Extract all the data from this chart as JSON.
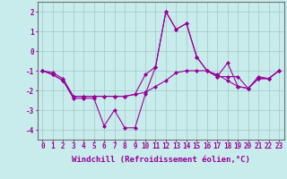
{
  "title": "",
  "xlabel": "Windchill (Refroidissement éolien,°C)",
  "ylabel": "",
  "background_color": "#c8ecec",
  "grid_color": "#a0c8c8",
  "line_color": "#990099",
  "x": [
    0,
    1,
    2,
    3,
    4,
    5,
    6,
    7,
    8,
    9,
    10,
    11,
    12,
    13,
    14,
    15,
    16,
    17,
    18,
    19,
    20,
    21,
    22,
    23
  ],
  "series1": [
    -1.0,
    -1.2,
    -1.5,
    -2.4,
    -2.4,
    -2.4,
    -3.8,
    -3.0,
    -3.9,
    -3.9,
    -2.2,
    -0.8,
    2.0,
    1.1,
    1.4,
    -0.3,
    -1.0,
    -1.3,
    -1.3,
    -1.3,
    -1.9,
    -1.3,
    -1.4,
    -1.0
  ],
  "series2": [
    -1.0,
    -1.1,
    -1.4,
    -2.3,
    -2.3,
    -2.3,
    -2.3,
    -2.3,
    -2.3,
    -2.2,
    -2.1,
    -1.8,
    -1.5,
    -1.1,
    -1.0,
    -1.0,
    -1.0,
    -1.2,
    -1.5,
    -1.8,
    -1.9,
    -1.4,
    -1.4,
    -1.0
  ],
  "series3": [
    -1.0,
    -1.2,
    -1.5,
    -2.3,
    -2.3,
    -2.3,
    -2.3,
    -2.3,
    -2.3,
    -2.2,
    -1.2,
    -0.8,
    2.0,
    1.1,
    1.4,
    -0.3,
    -1.0,
    -1.3,
    -0.6,
    -1.8,
    -1.9,
    -1.4,
    -1.4,
    -1.0
  ],
  "ylim": [
    -4.5,
    2.5
  ],
  "xlim": [
    -0.5,
    23.5
  ],
  "yticks": [
    -4,
    -3,
    -2,
    -1,
    0,
    1,
    2
  ],
  "xticks": [
    0,
    1,
    2,
    3,
    4,
    5,
    6,
    7,
    8,
    9,
    10,
    11,
    12,
    13,
    14,
    15,
    16,
    17,
    18,
    19,
    20,
    21,
    22,
    23
  ],
  "marker": "D",
  "markersize": 2.0,
  "linewidth": 0.8,
  "xlabel_fontsize": 6.5,
  "tick_fontsize": 5.5
}
